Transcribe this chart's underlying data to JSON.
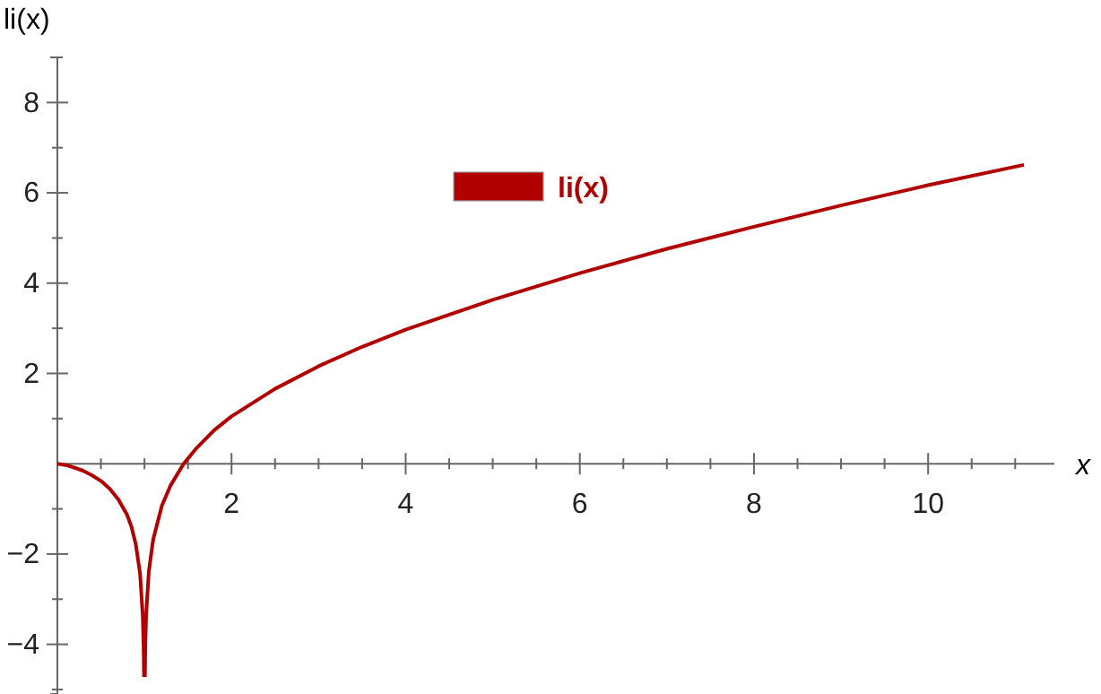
{
  "chart_data": {
    "type": "line",
    "xlabel": "x",
    "ylabel": "li(x)",
    "xlim": [
      0,
      11.45
    ],
    "ylim": [
      -5.1,
      9
    ],
    "xticks": [
      {
        "value": 0.5,
        "label": null
      },
      {
        "value": 1,
        "label": null
      },
      {
        "value": 1.5,
        "label": null
      },
      2,
      {
        "value": 2.5,
        "label": null
      },
      {
        "value": 3,
        "label": null
      },
      {
        "value": 3.5,
        "label": null
      },
      4,
      {
        "value": 4.5,
        "label": null
      },
      {
        "value": 5,
        "label": null
      },
      {
        "value": 5.5,
        "label": null
      },
      6,
      {
        "value": 6.5,
        "label": null
      },
      {
        "value": 7,
        "label": null
      },
      {
        "value": 7.5,
        "label": null
      },
      8,
      {
        "value": 8.5,
        "label": null
      },
      {
        "value": 9,
        "label": null
      },
      {
        "value": 9.5,
        "label": null
      },
      10,
      {
        "value": 10.5,
        "label": null
      },
      {
        "value": 11,
        "label": null
      }
    ],
    "yticks": [
      {
        "value": -5,
        "label": null
      },
      -4,
      {
        "value": -3,
        "label": null
      },
      -2,
      {
        "value": -1,
        "label": null
      },
      {
        "value": 1,
        "label": null
      },
      2,
      {
        "value": 3,
        "label": null
      },
      4,
      {
        "value": 5,
        "label": null
      },
      6,
      {
        "value": 7,
        "label": null
      },
      8,
      {
        "value": 9,
        "label": null
      }
    ],
    "legend": "top",
    "grid": false,
    "marker": "none",
    "line_style": "solid",
    "series": [
      {
        "name": "li(x)",
        "color": "#b00000",
        "x": [
          0,
          0.1,
          0.2,
          0.3,
          0.4,
          0.5,
          0.6,
          0.7,
          0.8,
          0.85,
          0.9,
          0.95,
          0.98,
          0.99,
          0.995,
          1,
          1.005,
          1.01,
          1.02,
          1.05,
          1.1,
          1.2,
          1.3,
          1.45,
          1.6,
          1.8,
          2,
          2.5,
          3,
          3.5,
          4,
          5,
          6,
          7,
          8,
          9,
          10,
          11.1
        ],
        "values": [
          0,
          -0.03,
          -0.09,
          -0.16,
          -0.26,
          -0.38,
          -0.55,
          -0.79,
          -1.13,
          -1.39,
          -1.78,
          -2.44,
          -3.35,
          -4.03,
          -4.72,
          null,
          -4.72,
          -4.02,
          -3.33,
          -2.39,
          -1.68,
          -0.93,
          -0.48,
          0,
          0.35,
          0.74,
          1.05,
          1.66,
          2.16,
          2.59,
          2.97,
          3.63,
          4.22,
          4.76,
          5.25,
          5.72,
          6.17,
          6.62
        ]
      }
    ]
  }
}
